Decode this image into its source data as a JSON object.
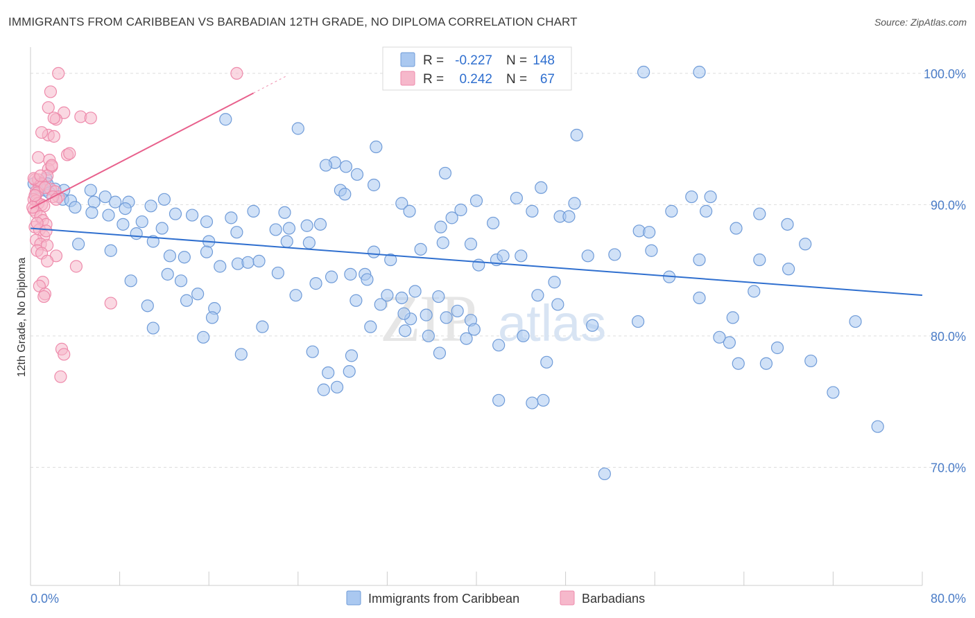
{
  "title": "IMMIGRANTS FROM CARIBBEAN VS BARBADIAN 12TH GRADE, NO DIPLOMA CORRELATION CHART",
  "source": "Source: ZipAtlas.com",
  "watermark": {
    "zip": "ZIP",
    "atlas": "atlas"
  },
  "colors": {
    "blue_fill": "#aac8f0",
    "blue_stroke": "#6f9bd8",
    "blue_line": "#2f6fcf",
    "pink_fill": "#f6b8cb",
    "pink_stroke": "#ee8aab",
    "pink_line": "#e8608c",
    "axis_text": "#4a7cc7",
    "grid": "#dddddd"
  },
  "chart_data": {
    "type": "scatter",
    "title": "IMMIGRANTS FROM CARIBBEAN VS BARBADIAN 12TH GRADE, NO DIPLOMA CORRELATION CHART",
    "xlabel": "",
    "ylabel": "12th Grade, No Diploma",
    "xlim": [
      0,
      80
    ],
    "ylim": [
      61,
      102
    ],
    "x_tick_labels": [
      "0.0%",
      "80.0%"
    ],
    "y_ticks": [
      70,
      80,
      90,
      100
    ],
    "y_tick_labels": [
      "70.0%",
      "80.0%",
      "90.0%",
      "100.0%"
    ],
    "grid": true,
    "legend_position": "top-center",
    "stats": [
      {
        "r_label": "R =",
        "r": "-0.227",
        "n_label": "N =",
        "n": "148"
      },
      {
        "r_label": "R =",
        "r": "0.242",
        "n_label": "N =",
        "n": "67"
      }
    ],
    "series": [
      {
        "name": "Immigrants from Caribbean",
        "color": "#aac8f0",
        "trend": {
          "x0": 0,
          "y0": 88.2,
          "x1": 80,
          "y1": 83.1
        },
        "points": [
          [
            0.3,
            91.6
          ],
          [
            0.5,
            90.8
          ],
          [
            0.8,
            91.3
          ],
          [
            1.0,
            91.5
          ],
          [
            1.3,
            91.1
          ],
          [
            1.4,
            92.0
          ],
          [
            1.5,
            91.6
          ],
          [
            2.2,
            91.2
          ],
          [
            1.7,
            90.9
          ],
          [
            3.0,
            91.1
          ],
          [
            2.9,
            90.4
          ],
          [
            5.4,
            91.1
          ],
          [
            6.7,
            90.6
          ],
          [
            3.6,
            90.3
          ],
          [
            5.7,
            90.2
          ],
          [
            7.6,
            90.2
          ],
          [
            8.8,
            90.2
          ],
          [
            12.0,
            90.4
          ],
          [
            10.8,
            89.9
          ],
          [
            4.0,
            89.8
          ],
          [
            8.5,
            89.7
          ],
          [
            13.0,
            89.3
          ],
          [
            5.5,
            89.4
          ],
          [
            7.0,
            89.2
          ],
          [
            10.0,
            88.7
          ],
          [
            15.8,
            88.7
          ],
          [
            11.8,
            88.2
          ],
          [
            14.5,
            89.2
          ],
          [
            18.0,
            89.0
          ],
          [
            9.5,
            87.8
          ],
          [
            16.0,
            87.2
          ],
          [
            18.5,
            87.9
          ],
          [
            20.0,
            89.5
          ],
          [
            22.0,
            88.1
          ],
          [
            22.8,
            89.4
          ],
          [
            24.8,
            88.4
          ],
          [
            23.0,
            87.2
          ],
          [
            26.0,
            88.5
          ],
          [
            7.2,
            86.5
          ],
          [
            8.3,
            88.5
          ],
          [
            11.0,
            87.2
          ],
          [
            12.5,
            86.1
          ],
          [
            13.8,
            86.0
          ],
          [
            15.8,
            86.4
          ],
          [
            17.0,
            85.3
          ],
          [
            18.6,
            85.5
          ],
          [
            19.5,
            85.6
          ],
          [
            20.5,
            85.7
          ],
          [
            22.2,
            84.8
          ],
          [
            23.2,
            88.2
          ],
          [
            25.0,
            87.1
          ],
          [
            27.8,
            91.1
          ],
          [
            28.2,
            90.8
          ],
          [
            30.8,
            91.5
          ],
          [
            33.3,
            90.1
          ],
          [
            34.0,
            89.5
          ],
          [
            36.8,
            88.3
          ],
          [
            37.8,
            89.0
          ],
          [
            38.6,
            89.6
          ],
          [
            40.0,
            90.3
          ],
          [
            41.5,
            88.6
          ],
          [
            43.6,
            90.5
          ],
          [
            45.0,
            89.5
          ],
          [
            45.8,
            91.3
          ],
          [
            47.5,
            89.1
          ],
          [
            48.3,
            89.1
          ],
          [
            48.8,
            90.1
          ],
          [
            50.0,
            86.1
          ],
          [
            49.0,
            95.3
          ],
          [
            54.6,
            88.0
          ],
          [
            55.5,
            87.9
          ],
          [
            57.5,
            89.5
          ],
          [
            59.3,
            90.6
          ],
          [
            61.0,
            90.6
          ],
          [
            60.6,
            89.5
          ],
          [
            63.3,
            88.2
          ],
          [
            65.4,
            89.3
          ],
          [
            67.9,
            88.5
          ],
          [
            69.5,
            87.0
          ],
          [
            28.3,
            92.9
          ],
          [
            29.3,
            92.3
          ],
          [
            24.0,
            95.8
          ],
          [
            27.3,
            93.2
          ],
          [
            31.0,
            94.4
          ],
          [
            17.5,
            96.5
          ],
          [
            26.5,
            93.0
          ],
          [
            37.2,
            92.4
          ],
          [
            32.3,
            85.8
          ],
          [
            30.8,
            86.4
          ],
          [
            35.0,
            86.6
          ],
          [
            37.0,
            87.1
          ],
          [
            40.2,
            85.4
          ],
          [
            41.8,
            85.8
          ],
          [
            39.5,
            87.0
          ],
          [
            42.4,
            86.1
          ],
          [
            44.0,
            86.1
          ],
          [
            47.0,
            84.1
          ],
          [
            52.4,
            86.2
          ],
          [
            55.7,
            86.5
          ],
          [
            57.3,
            84.5
          ],
          [
            60.0,
            85.8
          ],
          [
            65.4,
            85.8
          ],
          [
            27.0,
            84.5
          ],
          [
            25.6,
            84.0
          ],
          [
            28.7,
            84.7
          ],
          [
            30.0,
            84.7
          ],
          [
            31.4,
            82.4
          ],
          [
            29.2,
            82.7
          ],
          [
            30.2,
            84.3
          ],
          [
            32.0,
            83.1
          ],
          [
            33.3,
            82.9
          ],
          [
            34.1,
            81.3
          ],
          [
            37.3,
            81.4
          ],
          [
            39.5,
            81.2
          ],
          [
            38.3,
            81.9
          ],
          [
            45.5,
            83.1
          ],
          [
            47.3,
            82.4
          ],
          [
            50.4,
            80.8
          ],
          [
            60.0,
            82.9
          ],
          [
            63.0,
            81.4
          ],
          [
            62.7,
            79.5
          ],
          [
            67.0,
            79.1
          ],
          [
            42.0,
            79.3
          ],
          [
            36.7,
            78.7
          ],
          [
            28.8,
            78.5
          ],
          [
            27.5,
            76.1
          ],
          [
            42.0,
            75.1
          ],
          [
            46.0,
            75.1
          ],
          [
            30.5,
            80.7
          ],
          [
            33.6,
            80.4
          ],
          [
            26.3,
            75.9
          ],
          [
            4.3,
            87.0
          ],
          [
            9.0,
            84.2
          ],
          [
            10.5,
            82.3
          ],
          [
            12.3,
            84.7
          ],
          [
            13.5,
            84.2
          ],
          [
            14.0,
            82.7
          ],
          [
            15.0,
            83.2
          ],
          [
            16.5,
            82.1
          ],
          [
            15.5,
            79.9
          ],
          [
            18.9,
            78.6
          ],
          [
            20.8,
            80.7
          ],
          [
            11.0,
            80.6
          ],
          [
            23.8,
            83.1
          ],
          [
            25.3,
            78.8
          ],
          [
            33.5,
            81.7
          ],
          [
            35.7,
            80.0
          ],
          [
            36.6,
            83.0
          ],
          [
            16.3,
            81.4
          ],
          [
            26.7,
            77.2
          ],
          [
            39.8,
            80.5
          ],
          [
            44.2,
            80.0
          ],
          [
            45.0,
            74.9
          ],
          [
            46.3,
            78.0
          ],
          [
            51.5,
            69.5
          ],
          [
            76.0,
            73.1
          ],
          [
            61.8,
            79.9
          ],
          [
            66.0,
            77.9
          ],
          [
            34.5,
            83.4
          ],
          [
            64.9,
            83.4
          ],
          [
            54.5,
            81.1
          ],
          [
            35.5,
            81.6
          ],
          [
            39.1,
            79.8
          ],
          [
            28.6,
            77.3
          ],
          [
            63.5,
            77.9
          ],
          [
            70.0,
            78.1
          ],
          [
            72.0,
            75.7
          ],
          [
            74.0,
            81.1
          ],
          [
            55.0,
            100.1
          ],
          [
            60.0,
            100.1
          ],
          [
            68.0,
            85.1
          ]
        ]
      },
      {
        "name": "Barbadians",
        "color": "#f6b8cb",
        "trend": {
          "x0": 0,
          "y0": 89.7,
          "x1": 20.0,
          "y1": 98.5,
          "dash_x1": 23.0
        },
        "points": [
          [
            2.5,
            100.0
          ],
          [
            18.5,
            100.0
          ],
          [
            1.8,
            98.6
          ],
          [
            1.6,
            97.4
          ],
          [
            3.0,
            97.0
          ],
          [
            4.5,
            96.7
          ],
          [
            5.4,
            96.6
          ],
          [
            2.3,
            96.5
          ],
          [
            1.6,
            95.3
          ],
          [
            2.1,
            95.2
          ],
          [
            3.3,
            93.8
          ],
          [
            0.7,
            93.6
          ],
          [
            1.7,
            93.4
          ],
          [
            1.6,
            92.7
          ],
          [
            1.9,
            92.9
          ],
          [
            1.5,
            92.2
          ],
          [
            0.4,
            91.9
          ],
          [
            0.7,
            91.9
          ],
          [
            0.8,
            91.4
          ],
          [
            1.0,
            91.6
          ],
          [
            1.8,
            91.2
          ],
          [
            2.2,
            91.0
          ],
          [
            0.5,
            91.0
          ],
          [
            0.6,
            90.9
          ],
          [
            2.5,
            90.6
          ],
          [
            0.3,
            90.4
          ],
          [
            0.5,
            90.3
          ],
          [
            0.7,
            90.1
          ],
          [
            1.0,
            90.0
          ],
          [
            1.2,
            89.9
          ],
          [
            0.3,
            89.6
          ],
          [
            0.5,
            89.4
          ],
          [
            0.9,
            89.1
          ],
          [
            1.1,
            88.8
          ],
          [
            1.4,
            88.5
          ],
          [
            0.4,
            88.3
          ],
          [
            0.8,
            88.1
          ],
          [
            1.2,
            87.6
          ],
          [
            0.5,
            87.3
          ],
          [
            0.9,
            87.0
          ],
          [
            1.5,
            86.9
          ],
          [
            0.6,
            86.5
          ],
          [
            1.0,
            86.3
          ],
          [
            2.3,
            86.1
          ],
          [
            1.5,
            85.7
          ],
          [
            4.1,
            85.3
          ],
          [
            1.1,
            84.1
          ],
          [
            0.8,
            83.8
          ],
          [
            1.3,
            83.2
          ],
          [
            1.2,
            83.0
          ],
          [
            7.2,
            82.5
          ],
          [
            2.8,
            79.0
          ],
          [
            3.0,
            78.6
          ],
          [
            2.7,
            76.9
          ],
          [
            0.3,
            92.0
          ],
          [
            1.3,
            91.3
          ],
          [
            2.0,
            90.6
          ],
          [
            0.2,
            89.8
          ],
          [
            0.6,
            88.6
          ],
          [
            1.4,
            88.0
          ],
          [
            2.3,
            90.4
          ],
          [
            0.4,
            90.7
          ],
          [
            1.9,
            93.0
          ],
          [
            0.9,
            92.2
          ],
          [
            2.1,
            96.6
          ],
          [
            1.0,
            95.5
          ],
          [
            3.5,
            93.9
          ]
        ]
      }
    ]
  },
  "legend": {
    "series_labels": [
      "Immigrants from Caribbean",
      "Barbadians"
    ]
  }
}
